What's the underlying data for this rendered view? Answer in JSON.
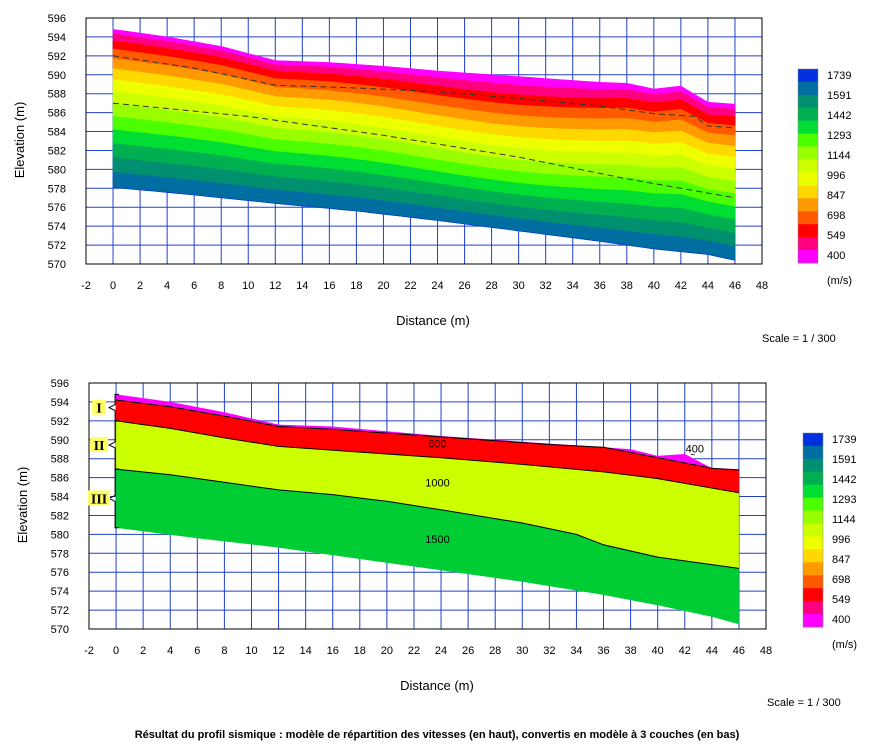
{
  "colors": {
    "legend": [
      "#ff00ff",
      "#ff0080",
      "#ff0000",
      "#ff5a00",
      "#ff9a00",
      "#ffd800",
      "#eeff00",
      "#ccff00",
      "#99ff00",
      "#4cff00",
      "#00dd33",
      "#00b050",
      "#009070",
      "#006ea0",
      "#0030e0"
    ],
    "layers": [
      "#ff00ff",
      "#ff0000",
      "#ccff00",
      "#00cc33"
    ],
    "grid": "#2040d0"
  },
  "legend": {
    "labels": [
      "1739",
      "1591",
      "1442",
      "1293",
      "1144",
      "996",
      "847",
      "698",
      "549",
      "400"
    ],
    "unit": "(m/s)"
  },
  "chart_data": [
    {
      "type": "heatmap",
      "description_of_values": "seismic velocity model (m/s)",
      "xlabel": "Distance (m)",
      "ylabel": "Elevation (m)",
      "xlim": [
        -2,
        48
      ],
      "ylim": [
        570,
        596
      ],
      "x_ticks": [
        "-2",
        "0",
        "2",
        "4",
        "6",
        "8",
        "10",
        "12",
        "14",
        "16",
        "18",
        "20",
        "22",
        "24",
        "26",
        "28",
        "30",
        "32",
        "34",
        "36",
        "38",
        "40",
        "42",
        "44",
        "46",
        "48"
      ],
      "y_ticks": [
        "596",
        "594",
        "592",
        "590",
        "588",
        "586",
        "584",
        "582",
        "580",
        "578",
        "576",
        "574",
        "572",
        "570"
      ],
      "grid": true,
      "scale_text": "Scale = 1 / 300",
      "surface": [
        [
          0,
          594.8
        ],
        [
          4,
          594
        ],
        [
          8,
          593
        ],
        [
          12,
          591.5
        ],
        [
          16,
          591.3
        ],
        [
          20,
          590.9
        ],
        [
          24,
          590.4
        ],
        [
          28,
          590
        ],
        [
          32,
          589.6
        ],
        [
          36,
          589.2
        ],
        [
          38,
          589.1
        ],
        [
          40,
          588.5
        ],
        [
          42,
          588.8
        ],
        [
          44,
          587.1
        ],
        [
          46,
          586.9
        ]
      ],
      "bottom": [
        [
          0,
          578.1
        ],
        [
          6,
          577.3
        ],
        [
          12,
          576.4
        ],
        [
          18,
          575.6
        ],
        [
          24,
          574.6
        ],
        [
          30,
          573.5
        ],
        [
          36,
          572.4
        ],
        [
          40,
          571.6
        ],
        [
          44,
          571
        ],
        [
          46,
          570.4
        ]
      ],
      "dashed_lines": [
        [
          [
            0,
            592
          ],
          [
            6,
            590.7
          ],
          [
            12,
            588.9
          ],
          [
            18,
            588.6
          ],
          [
            24,
            588.2
          ],
          [
            30,
            587.5
          ],
          [
            36,
            586.7
          ],
          [
            40,
            585.9
          ],
          [
            43,
            585.6
          ],
          [
            44,
            584.6
          ],
          [
            46,
            584.4
          ]
        ],
        [
          [
            0,
            587
          ],
          [
            10,
            585.6
          ],
          [
            20,
            583.6
          ],
          [
            30,
            581.3
          ],
          [
            38,
            579
          ],
          [
            46,
            577
          ]
        ]
      ]
    },
    {
      "type": "area",
      "description_of_values": "3-layer velocity model",
      "xlabel": "Distance (m)",
      "ylabel": "Elevation (m)",
      "xlim": [
        -2,
        48
      ],
      "ylim": [
        570,
        596
      ],
      "x_ticks": [
        "-2",
        "0",
        "2",
        "4",
        "6",
        "8",
        "10",
        "12",
        "14",
        "16",
        "18",
        "20",
        "22",
        "24",
        "26",
        "28",
        "30",
        "32",
        "34",
        "36",
        "38",
        "40",
        "42",
        "44",
        "46",
        "48"
      ],
      "y_ticks": [
        "596",
        "594",
        "592",
        "590",
        "588",
        "586",
        "584",
        "582",
        "580",
        "578",
        "576",
        "574",
        "572",
        "570"
      ],
      "grid": true,
      "scale_text": "Scale = 1 / 300",
      "surface": [
        [
          0,
          594.8
        ],
        [
          4,
          594
        ],
        [
          8,
          592.9
        ],
        [
          12,
          591.6
        ],
        [
          16,
          591.4
        ],
        [
          20,
          590.9
        ],
        [
          24,
          590.4
        ],
        [
          28,
          590
        ],
        [
          32,
          589.6
        ],
        [
          36,
          589.2
        ],
        [
          38,
          589
        ],
        [
          40,
          588.3
        ],
        [
          42,
          588.5
        ],
        [
          44,
          587
        ],
        [
          46,
          586.9
        ]
      ],
      "interfaces": [
        [
          [
            0,
            594.2
          ],
          [
            4,
            593.5
          ],
          [
            8,
            592.5
          ],
          [
            12,
            591.4
          ],
          [
            16,
            591.1
          ],
          [
            20,
            590.7
          ],
          [
            24,
            590.3
          ],
          [
            28,
            589.9
          ],
          [
            32,
            589.5
          ],
          [
            36,
            589.2
          ],
          [
            40,
            588.1
          ],
          [
            44,
            587
          ],
          [
            46,
            586.8
          ]
        ],
        [
          [
            0,
            592
          ],
          [
            4,
            591.2
          ],
          [
            8,
            590.2
          ],
          [
            12,
            589.3
          ],
          [
            18,
            588.7
          ],
          [
            24,
            588.1
          ],
          [
            30,
            587.4
          ],
          [
            36,
            586.6
          ],
          [
            40,
            585.9
          ],
          [
            46,
            584.4
          ]
        ],
        [
          [
            0,
            586.9
          ],
          [
            4,
            586.3
          ],
          [
            8,
            585.5
          ],
          [
            12,
            584.7
          ],
          [
            16,
            584.2
          ],
          [
            20,
            583.5
          ],
          [
            24,
            582.6
          ],
          [
            30,
            581.2
          ],
          [
            34,
            580
          ],
          [
            36,
            578.9
          ],
          [
            40,
            577.6
          ],
          [
            46,
            576.4
          ]
        ]
      ],
      "bottom": [
        [
          0,
          580.7
        ],
        [
          6,
          579.6
        ],
        [
          12,
          578.6
        ],
        [
          18,
          577.4
        ],
        [
          24,
          576.2
        ],
        [
          30,
          575
        ],
        [
          36,
          573.6
        ],
        [
          40,
          572.5
        ],
        [
          44,
          571.3
        ],
        [
          46,
          570.5
        ]
      ],
      "layer_labels": [
        {
          "text": "400",
          "x": 42,
          "y": 589.1
        },
        {
          "text": "600",
          "x": 23,
          "y": 589.6
        },
        {
          "text": "1000",
          "x": 23,
          "y": 585.5
        },
        {
          "text": "1500",
          "x": 23,
          "y": 579.5
        }
      ],
      "layer_ids": [
        "I",
        "II",
        "III"
      ]
    }
  ],
  "caption": "Résultat du profil sismique : modèle de répartition des vitesses (en haut), convertis en modèle à 3 couches (en bas)"
}
